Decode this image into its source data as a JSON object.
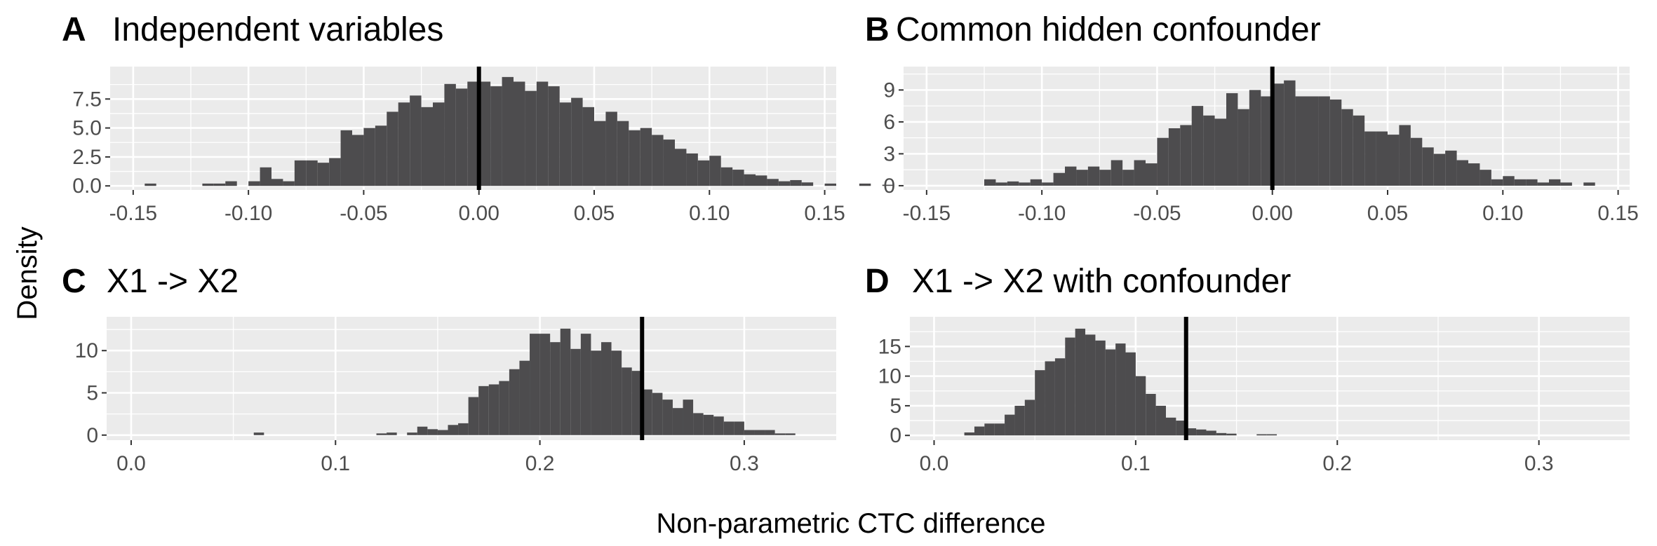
{
  "figure": {
    "ylabel": "Density",
    "xlabel": "Non-parametric CTC difference"
  },
  "colors": {
    "panel_bg": "#ebebeb",
    "grid_major": "#ffffff",
    "bar_fill": "#4d4c4e",
    "vline": "#000000",
    "tick_text": "#4d4d4d"
  },
  "chart_data": [
    {
      "type": "bar",
      "tag": "A",
      "title": "Independent variables",
      "xlim": [
        -0.16,
        0.155
      ],
      "ylim": [
        -0.35,
        10.3
      ],
      "xticks": [
        -0.15,
        -0.1,
        -0.05,
        0.0,
        0.05,
        0.1,
        0.15
      ],
      "xtick_labels": [
        "-0.15",
        "-0.10",
        "-0.05",
        "0.00",
        "0.05",
        "0.10",
        "0.15"
      ],
      "yticks": [
        0,
        2.5,
        5.0,
        7.5
      ],
      "ytick_labels": [
        "0.0",
        "2.5",
        "5.0",
        "7.5"
      ],
      "bin_start": -0.145,
      "bin_width": 0.005,
      "values": [
        0.2,
        0,
        0,
        0,
        0,
        0.2,
        0.2,
        0.4,
        0,
        0.4,
        1.6,
        0.6,
        0.4,
        2.2,
        2.2,
        2.0,
        2.4,
        4.8,
        4.4,
        5.0,
        5.2,
        6.4,
        7.2,
        7.8,
        6.8,
        7.2,
        8.8,
        8.4,
        9.0,
        9.0,
        8.6,
        9.4,
        9.0,
        8.2,
        9.0,
        8.6,
        7.2,
        7.6,
        6.8,
        5.6,
        6.4,
        5.6,
        4.8,
        5.0,
        4.4,
        4.0,
        3.2,
        2.8,
        2.2,
        2.6,
        1.6,
        1.4,
        1.0,
        0.9,
        0.6,
        0.4,
        0.5,
        0.3,
        0,
        0.2,
        0,
        0,
        0.2,
        0,
        0.1
      ],
      "vline": 0.0
    },
    {
      "type": "bar",
      "tag": "B",
      "title": "Common hidden confounder",
      "xlim": [
        -0.16,
        0.155
      ],
      "ylim": [
        -0.4,
        11.2
      ],
      "xticks": [
        -0.15,
        -0.1,
        -0.05,
        0.0,
        0.05,
        0.1,
        0.15
      ],
      "xtick_labels": [
        "-0.15",
        "-0.10",
        "-0.05",
        "0.00",
        "0.05",
        "0.10",
        "0.15"
      ],
      "yticks": [
        0,
        3,
        6,
        9
      ],
      "ytick_labels": [
        "0",
        "3",
        "6",
        "9"
      ],
      "bin_start": -0.125,
      "bin_width": 0.005,
      "values": [
        0.6,
        0.3,
        0.4,
        0.3,
        0.6,
        0.3,
        1.2,
        1.8,
        1.5,
        1.8,
        1.5,
        2.4,
        1.5,
        2.4,
        2.1,
        4.5,
        5.4,
        5.7,
        7.5,
        6.6,
        6.3,
        8.7,
        7.2,
        9.0,
        8.4,
        9.6,
        9.9,
        8.4,
        8.4,
        8.4,
        8.1,
        7.2,
        6.6,
        5.1,
        5.1,
        4.8,
        5.7,
        4.5,
        3.6,
        3.0,
        3.3,
        2.4,
        2.1,
        1.5,
        0.6,
        0.9,
        0.6,
        0.6,
        0.3,
        0.6,
        0.3,
        0,
        0.3
      ],
      "vline": 0.0
    },
    {
      "type": "bar",
      "tag": "C",
      "title": "X1 -> X2",
      "xlim": [
        -0.012,
        0.345
      ],
      "ylim": [
        -0.6,
        14.0
      ],
      "xticks": [
        0.0,
        0.1,
        0.2,
        0.3
      ],
      "xtick_labels": [
        "0.0",
        "0.1",
        "0.2",
        "0.3"
      ],
      "yticks": [
        0,
        5,
        10
      ],
      "ytick_labels": [
        "0",
        "5",
        "10"
      ],
      "bin_start": 0.06,
      "bin_width": 0.005,
      "values": [
        0.3,
        0,
        0,
        0,
        0,
        0,
        0,
        0,
        0,
        0,
        0,
        0,
        0.2,
        0.3,
        0,
        0.3,
        1.0,
        0.7,
        0.6,
        1.2,
        1.4,
        4.5,
        5.8,
        6.0,
        6.4,
        7.8,
        8.8,
        12.0,
        12.0,
        11.0,
        12.6,
        10.2,
        12.0,
        10.0,
        11.0,
        10.0,
        8.0,
        7.6,
        5.4,
        5.0,
        4.2,
        3.2,
        4.2,
        2.6,
        2.4,
        2.2,
        1.6,
        1.6,
        0.6,
        0.6,
        0.6,
        0.2,
        0.2
      ],
      "vline": 0.25
    },
    {
      "type": "bar",
      "tag": "D",
      "title": "X1 -> X2 with confounder",
      "xlim": [
        -0.012,
        0.345
      ],
      "ylim": [
        -0.8,
        20.0
      ],
      "xticks": [
        0.0,
        0.1,
        0.2,
        0.3
      ],
      "xtick_labels": [
        "0.0",
        "0.1",
        "0.2",
        "0.3"
      ],
      "yticks": [
        0,
        5,
        10,
        15
      ],
      "ytick_labels": [
        "0",
        "5",
        "10",
        "15"
      ],
      "bin_start": 0.015,
      "bin_width": 0.005,
      "values": [
        0.5,
        1.5,
        2.0,
        2.0,
        3.5,
        5.0,
        6.0,
        11.0,
        12.5,
        13.0,
        16.5,
        18.0,
        17.0,
        16.0,
        14.5,
        15.5,
        14.0,
        10.0,
        7.0,
        5.0,
        3.0,
        2.5,
        1.2,
        1.0,
        0.8,
        0.4,
        0.3,
        0,
        0,
        0.2,
        0.2
      ],
      "vline": 0.125
    }
  ]
}
